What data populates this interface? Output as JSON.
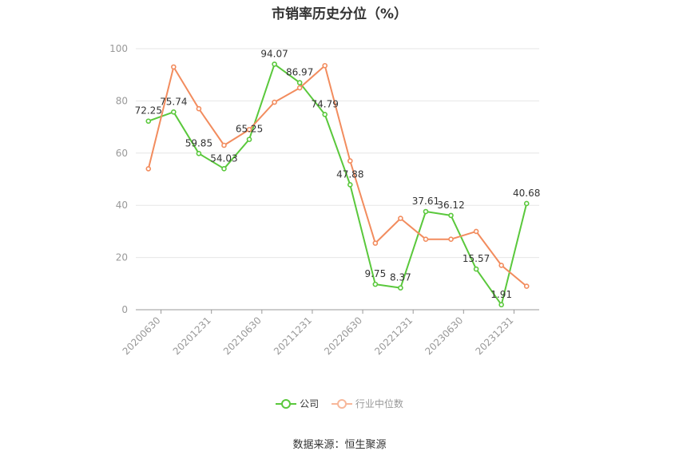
{
  "chart_data": {
    "type": "line",
    "title": "市销率历史分位（%）",
    "categories": [
      "20200630",
      "20201231",
      "20210630",
      "20211231",
      "20220630",
      "20221231",
      "20230630",
      "20231231"
    ],
    "x": [
      "20200630",
      "20200930",
      "20201231",
      "20210331",
      "20210630",
      "20210930",
      "20211231",
      "20220331",
      "20220630",
      "20220930",
      "20221231",
      "20230331",
      "20230630",
      "20230930",
      "20231231",
      "20240331"
    ],
    "series": [
      {
        "name": "公司",
        "color": "#5ac83c",
        "values": [
          72.25,
          75.74,
          59.85,
          54.03,
          65.25,
          94.07,
          86.97,
          74.79,
          47.88,
          9.75,
          8.37,
          37.61,
          36.12,
          15.57,
          1.91,
          40.68
        ]
      },
      {
        "name": "行业中位数",
        "color": "#f28c5e",
        "values": [
          54.0,
          93.0,
          77.0,
          63.0,
          69.0,
          79.5,
          85.0,
          93.5,
          57.0,
          25.5,
          35.0,
          27.0,
          27.0,
          30.0,
          17.0,
          9.0
        ]
      }
    ],
    "y_ticks": [
      "0",
      "20",
      "40",
      "60",
      "80",
      "100"
    ],
    "ylim": [
      0,
      100
    ],
    "grid": true,
    "legend_position": "bottom"
  },
  "source": "数据来源：恒生聚源"
}
